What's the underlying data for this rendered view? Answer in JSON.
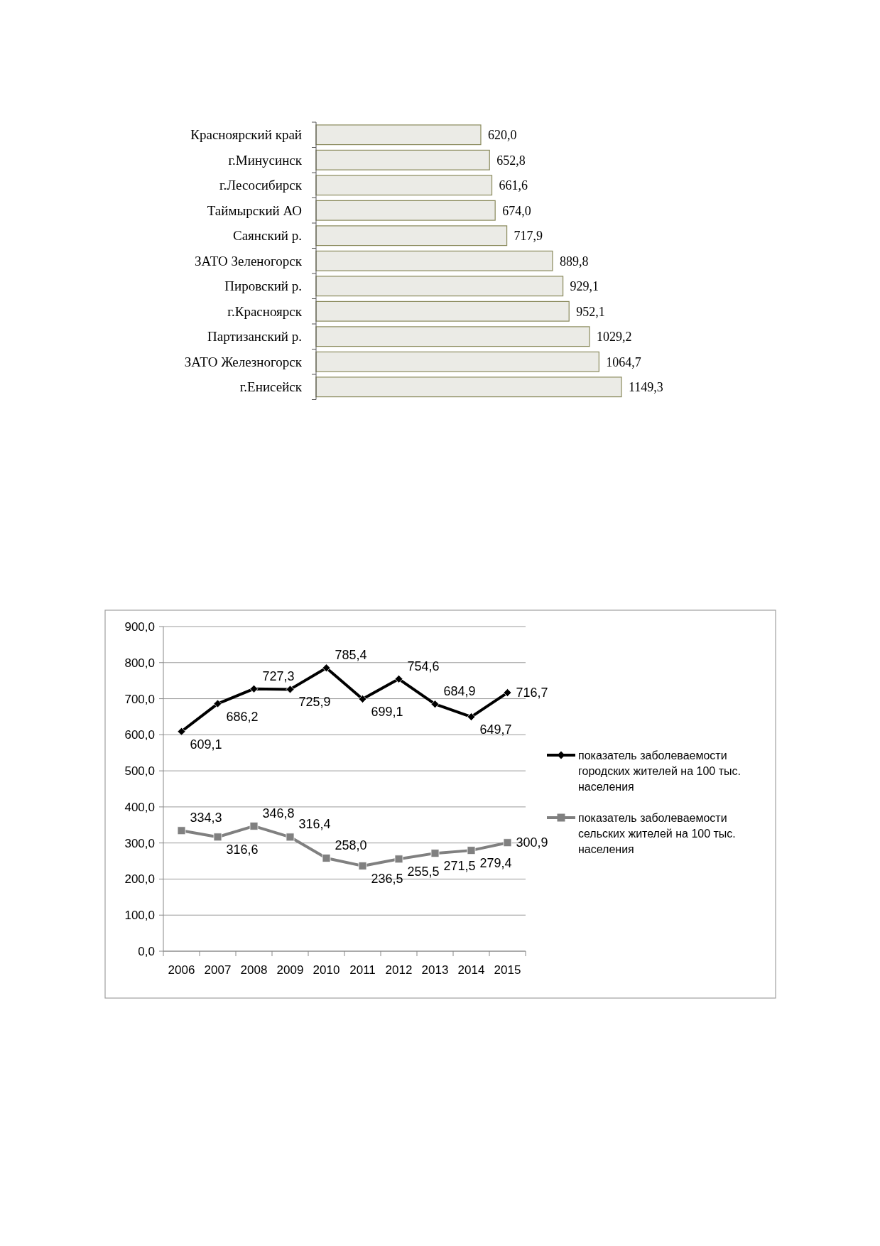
{
  "chart_data": [
    {
      "type": "bar",
      "orientation": "horizontal",
      "categories": [
        "Красноярский край",
        "г.Минусинск",
        "г.Лесосибирск",
        "Таймырский АО",
        "Саянский р.",
        "ЗАТО Зеленогорск",
        "Пировский р.",
        "г.Красноярск",
        "Партизанский р.",
        "ЗАТО Железногорск",
        "г.Енисейск"
      ],
      "values": [
        620.0,
        652.8,
        661.6,
        674.0,
        717.9,
        889.8,
        929.1,
        952.1,
        1029.2,
        1064.7,
        1149.3
      ],
      "value_labels": [
        "620,0",
        "652,8",
        "661,6",
        "674,0",
        "717,9",
        "889,8",
        "929,1",
        "952,1",
        "1029,2",
        "1064,7",
        "1149,3"
      ],
      "color": "#ebebe6"
    },
    {
      "type": "line",
      "categories": [
        "2006",
        "2007",
        "2008",
        "2009",
        "2010",
        "2011",
        "2012",
        "2013",
        "2014",
        "2015"
      ],
      "series": [
        {
          "name": "показатель заболеваемости городских жителей  на 100 тыс. населения",
          "color": "#000000",
          "marker": "diamond",
          "values": [
            609.1,
            686.2,
            727.3,
            725.9,
            785.4,
            699.1,
            754.6,
            684.9,
            649.7,
            716.7
          ],
          "value_labels": [
            "609,1",
            "686,2",
            "727,3",
            "725,9",
            "785,4",
            "699,1",
            "754,6",
            "684,9",
            "649,7",
            "716,7"
          ]
        },
        {
          "name": "показатель заболеваемости сельских жителей на 100 тыс. населения",
          "color": "#808080",
          "marker": "square",
          "values": [
            334.3,
            316.6,
            346.8,
            316.4,
            258.0,
            236.5,
            255.5,
            271.5,
            279.4,
            300.9
          ],
          "value_labels": [
            "334,3",
            "316,6",
            "346,8",
            "316,4",
            "258,0",
            "236,5",
            "255,5",
            "271,5",
            "279,4",
            "300,9"
          ]
        }
      ],
      "ylim": [
        0,
        900
      ],
      "yticks": [
        {
          "value": 0,
          "label": "0,0"
        },
        {
          "value": 100,
          "label": "100,0"
        },
        {
          "value": 200,
          "label": "200,0"
        },
        {
          "value": 300,
          "label": "300,0"
        },
        {
          "value": 400,
          "label": "400,0"
        },
        {
          "value": 500,
          "label": "500,0"
        },
        {
          "value": 600,
          "label": "600,0"
        },
        {
          "value": 700,
          "label": "700,0"
        },
        {
          "value": 800,
          "label": "800,0"
        },
        {
          "value": 900,
          "label": "900,0"
        }
      ],
      "grid": "y",
      "legend": "right",
      "line_style": "solid"
    }
  ]
}
